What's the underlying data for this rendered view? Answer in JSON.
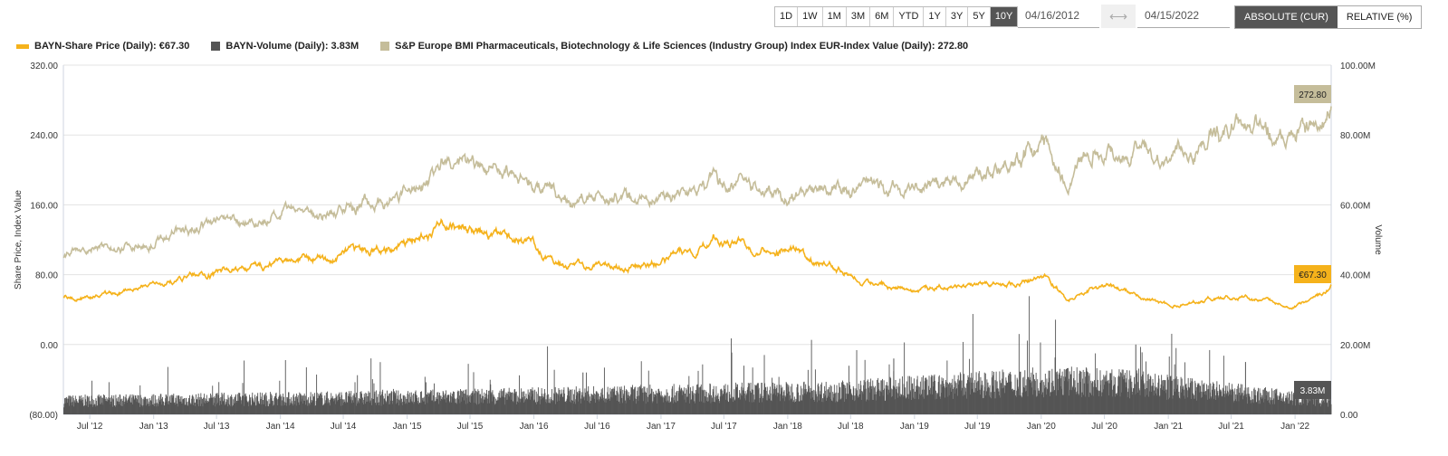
{
  "toolbar": {
    "ranges": [
      "1D",
      "1W",
      "1M",
      "3M",
      "6M",
      "YTD",
      "1Y",
      "3Y",
      "5Y",
      "10Y"
    ],
    "active_range": "10Y",
    "start_date": "04/16/2012",
    "end_date": "04/15/2022",
    "modes": [
      "ABSOLUTE (CUR)",
      "RELATIVE (%)"
    ],
    "active_mode": "ABSOLUTE (CUR)"
  },
  "legend": [
    {
      "label": "BAYN-Share Price (Daily): €67.30",
      "color": "#F5B21B"
    },
    {
      "label": "BAYN-Volume (Daily): 3.83M",
      "color": "#555555"
    },
    {
      "label": "S&P Europe BMI Pharmaceuticals, Biotechnology & Life Sciences (Industry Group) Index EUR-Index Value (Daily): 272.80",
      "color": "#C5BD9A"
    }
  ],
  "chart_data": {
    "type": "line",
    "left_axis": {
      "label": "Share Price, Index Value",
      "ticks": [
        "320.00",
        "240.00",
        "160.00",
        "80.00",
        "0.00",
        "(80.00)"
      ],
      "range": [
        -80,
        320
      ]
    },
    "right_axis": {
      "label": "Volume",
      "ticks": [
        "100.00M",
        "80.00M",
        "60.00M",
        "40.00M",
        "20.00M",
        "0.00"
      ],
      "range": [
        0,
        100
      ]
    },
    "x_ticks": [
      "Jul '12",
      "Jan '13",
      "Jul '13",
      "Jan '14",
      "Jul '14",
      "Jan '15",
      "Jul '15",
      "Jan '16",
      "Jul '16",
      "Jan '17",
      "Jul '17",
      "Jan '18",
      "Jul '18",
      "Jan '19",
      "Jul '19",
      "Jan '20",
      "Jul '20",
      "Jan '21",
      "Jul '21",
      "Jan '22"
    ],
    "x_range": [
      "2012-04-16",
      "2022-04-15"
    ],
    "grid": true,
    "series": [
      {
        "name": "BAYN-Share Price (Daily)",
        "color": "#F5B21B",
        "last_label": "€67.30",
        "points": [
          [
            "2012-04-16",
            55
          ],
          [
            "2012-07-01",
            53
          ],
          [
            "2013-01-01",
            68
          ],
          [
            "2013-07-01",
            84
          ],
          [
            "2014-01-01",
            94
          ],
          [
            "2014-07-01",
            100
          ],
          [
            "2015-01-01",
            115
          ],
          [
            "2015-04-10",
            143
          ],
          [
            "2015-07-01",
            130
          ],
          [
            "2016-01-01",
            115
          ],
          [
            "2016-04-01",
            89
          ],
          [
            "2016-07-01",
            89
          ],
          [
            "2017-01-01",
            92
          ],
          [
            "2017-06-01",
            120
          ],
          [
            "2018-01-01",
            110
          ],
          [
            "2018-07-01",
            84
          ],
          [
            "2018-08-15",
            73
          ],
          [
            "2019-01-01",
            65
          ],
          [
            "2019-07-01",
            65
          ],
          [
            "2020-01-15",
            75
          ],
          [
            "2020-03-18",
            51
          ],
          [
            "2020-07-01",
            68
          ],
          [
            "2021-01-01",
            45
          ],
          [
            "2021-07-01",
            55
          ],
          [
            "2022-01-01",
            46
          ],
          [
            "2022-03-20",
            58
          ],
          [
            "2022-04-15",
            67.3
          ]
        ]
      },
      {
        "name": "BAYN-Volume (Daily)",
        "color": "#555555",
        "unit": "M",
        "last_label": "3.83M",
        "points": [
          [
            "2012-04-16",
            4
          ],
          [
            "2015-01-01",
            5
          ],
          [
            "2018-06-01",
            7
          ],
          [
            "2020-03-01",
            10
          ],
          [
            "2020-10-01",
            9
          ],
          [
            "2022-04-15",
            3.83
          ]
        ],
        "spikes": [
          [
            "2020-09-28",
            20
          ],
          [
            "2018-11-01",
            16
          ],
          [
            "2021-08-10",
            15
          ],
          [
            "2016-05-20",
            12
          ],
          [
            "2020-03-12",
            13
          ]
        ]
      },
      {
        "name": "S&P Europe BMI Pharmaceuticals, Biotechnology & Life Sciences (Industry Group) Index EUR-Index Value (Daily)",
        "color": "#C5BD9A",
        "last_label": "272.80",
        "points": [
          [
            "2012-04-16",
            102
          ],
          [
            "2013-01-01",
            120
          ],
          [
            "2013-07-01",
            141
          ],
          [
            "2014-01-01",
            146
          ],
          [
            "2014-07-01",
            156
          ],
          [
            "2015-01-01",
            172
          ],
          [
            "2015-04-10",
            208
          ],
          [
            "2015-07-01",
            203
          ],
          [
            "2016-01-01",
            188
          ],
          [
            "2016-04-01",
            165
          ],
          [
            "2017-01-01",
            169
          ],
          [
            "2017-06-01",
            188
          ],
          [
            "2018-01-01",
            169
          ],
          [
            "2018-07-01",
            177
          ],
          [
            "2019-01-01",
            179
          ],
          [
            "2019-07-01",
            198
          ],
          [
            "2020-01-15",
            229
          ],
          [
            "2020-03-18",
            182
          ],
          [
            "2020-06-01",
            227
          ],
          [
            "2021-01-01",
            213
          ],
          [
            "2021-07-01",
            245
          ],
          [
            "2022-01-01",
            239
          ],
          [
            "2022-03-10",
            239
          ],
          [
            "2022-04-15",
            272.8
          ]
        ]
      }
    ]
  }
}
